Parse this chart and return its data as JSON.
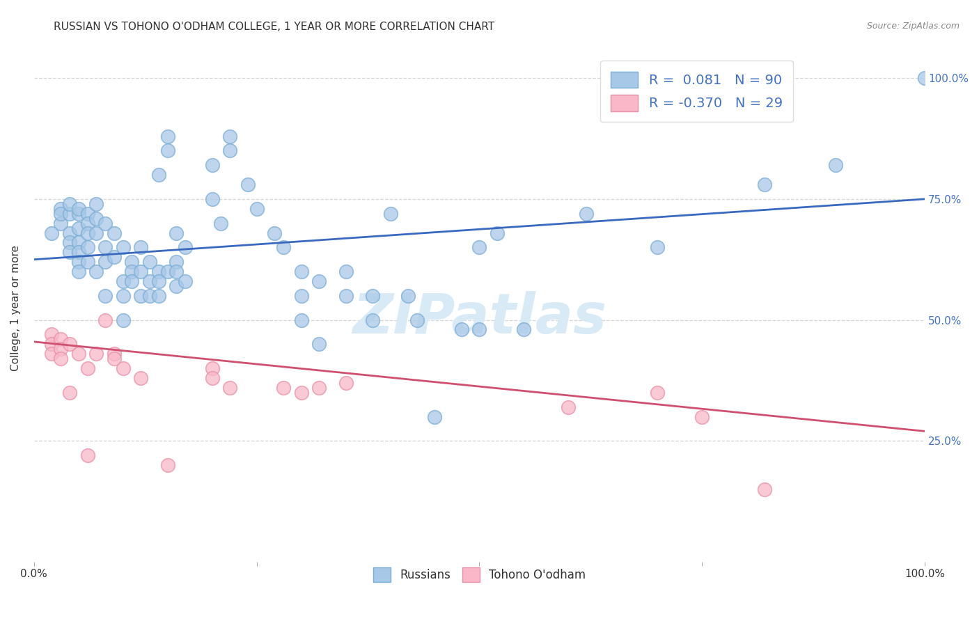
{
  "title": "RUSSIAN VS TOHONO O'ODHAM COLLEGE, 1 YEAR OR MORE CORRELATION CHART",
  "source": "Source: ZipAtlas.com",
  "ylabel": "College, 1 year or more",
  "xlim": [
    0.0,
    1.0
  ],
  "ylim": [
    0.0,
    1.05
  ],
  "blue_color": "#a8c8e8",
  "blue_edge_color": "#7aadd4",
  "pink_color": "#f8b8c8",
  "pink_edge_color": "#e890a8",
  "blue_line_color": "#3a6abf",
  "pink_line_color": "#d05070",
  "watermark_color": "#d8eaf6",
  "label_color_blue": "#4472c4",
  "label_color_dark": "#333333",
  "label_color_source": "#888888",
  "blue_scatter": [
    [
      0.02,
      0.68
    ],
    [
      0.03,
      0.7
    ],
    [
      0.03,
      0.73
    ],
    [
      0.03,
      0.72
    ],
    [
      0.04,
      0.72
    ],
    [
      0.04,
      0.74
    ],
    [
      0.04,
      0.68
    ],
    [
      0.04,
      0.66
    ],
    [
      0.04,
      0.64
    ],
    [
      0.05,
      0.72
    ],
    [
      0.05,
      0.73
    ],
    [
      0.05,
      0.69
    ],
    [
      0.05,
      0.66
    ],
    [
      0.05,
      0.64
    ],
    [
      0.05,
      0.62
    ],
    [
      0.05,
      0.6
    ],
    [
      0.06,
      0.72
    ],
    [
      0.06,
      0.7
    ],
    [
      0.06,
      0.68
    ],
    [
      0.06,
      0.65
    ],
    [
      0.06,
      0.62
    ],
    [
      0.07,
      0.74
    ],
    [
      0.07,
      0.71
    ],
    [
      0.07,
      0.68
    ],
    [
      0.07,
      0.6
    ],
    [
      0.08,
      0.7
    ],
    [
      0.08,
      0.65
    ],
    [
      0.08,
      0.62
    ],
    [
      0.08,
      0.55
    ],
    [
      0.09,
      0.68
    ],
    [
      0.09,
      0.63
    ],
    [
      0.1,
      0.65
    ],
    [
      0.1,
      0.58
    ],
    [
      0.1,
      0.55
    ],
    [
      0.1,
      0.5
    ],
    [
      0.11,
      0.62
    ],
    [
      0.11,
      0.6
    ],
    [
      0.11,
      0.58
    ],
    [
      0.12,
      0.65
    ],
    [
      0.12,
      0.6
    ],
    [
      0.12,
      0.55
    ],
    [
      0.13,
      0.62
    ],
    [
      0.13,
      0.58
    ],
    [
      0.13,
      0.55
    ],
    [
      0.14,
      0.8
    ],
    [
      0.14,
      0.6
    ],
    [
      0.14,
      0.58
    ],
    [
      0.14,
      0.55
    ],
    [
      0.15,
      0.88
    ],
    [
      0.15,
      0.85
    ],
    [
      0.15,
      0.6
    ],
    [
      0.16,
      0.68
    ],
    [
      0.16,
      0.62
    ],
    [
      0.16,
      0.6
    ],
    [
      0.16,
      0.57
    ],
    [
      0.17,
      0.65
    ],
    [
      0.17,
      0.58
    ],
    [
      0.2,
      0.82
    ],
    [
      0.2,
      0.75
    ],
    [
      0.21,
      0.7
    ],
    [
      0.22,
      0.88
    ],
    [
      0.22,
      0.85
    ],
    [
      0.24,
      0.78
    ],
    [
      0.25,
      0.73
    ],
    [
      0.27,
      0.68
    ],
    [
      0.28,
      0.65
    ],
    [
      0.3,
      0.6
    ],
    [
      0.3,
      0.55
    ],
    [
      0.3,
      0.5
    ],
    [
      0.32,
      0.58
    ],
    [
      0.32,
      0.45
    ],
    [
      0.35,
      0.6
    ],
    [
      0.35,
      0.55
    ],
    [
      0.38,
      0.55
    ],
    [
      0.38,
      0.5
    ],
    [
      0.4,
      0.72
    ],
    [
      0.42,
      0.55
    ],
    [
      0.43,
      0.5
    ],
    [
      0.45,
      0.3
    ],
    [
      0.48,
      0.48
    ],
    [
      0.5,
      0.65
    ],
    [
      0.5,
      0.48
    ],
    [
      0.52,
      0.68
    ],
    [
      0.55,
      0.48
    ],
    [
      0.62,
      0.72
    ],
    [
      0.7,
      0.65
    ],
    [
      0.82,
      0.78
    ],
    [
      0.9,
      0.82
    ],
    [
      1.0,
      1.0
    ]
  ],
  "pink_scatter": [
    [
      0.02,
      0.47
    ],
    [
      0.02,
      0.45
    ],
    [
      0.02,
      0.43
    ],
    [
      0.03,
      0.46
    ],
    [
      0.03,
      0.44
    ],
    [
      0.03,
      0.42
    ],
    [
      0.04,
      0.45
    ],
    [
      0.04,
      0.35
    ],
    [
      0.05,
      0.43
    ],
    [
      0.06,
      0.4
    ],
    [
      0.06,
      0.22
    ],
    [
      0.07,
      0.43
    ],
    [
      0.08,
      0.5
    ],
    [
      0.09,
      0.43
    ],
    [
      0.09,
      0.42
    ],
    [
      0.1,
      0.4
    ],
    [
      0.12,
      0.38
    ],
    [
      0.15,
      0.2
    ],
    [
      0.2,
      0.4
    ],
    [
      0.2,
      0.38
    ],
    [
      0.22,
      0.36
    ],
    [
      0.28,
      0.36
    ],
    [
      0.3,
      0.35
    ],
    [
      0.32,
      0.36
    ],
    [
      0.35,
      0.37
    ],
    [
      0.6,
      0.32
    ],
    [
      0.7,
      0.35
    ],
    [
      0.75,
      0.3
    ],
    [
      0.82,
      0.15
    ]
  ],
  "blue_line_x": [
    0.0,
    1.0
  ],
  "blue_line_y": [
    0.625,
    0.75
  ],
  "pink_line_x": [
    0.0,
    1.0
  ],
  "pink_line_y": [
    0.455,
    0.27
  ],
  "y_tick_positions": [
    0.25,
    0.5,
    0.75,
    1.0
  ],
  "y_tick_labels": [
    "25.0%",
    "50.0%",
    "75.0%",
    "100.0%"
  ]
}
